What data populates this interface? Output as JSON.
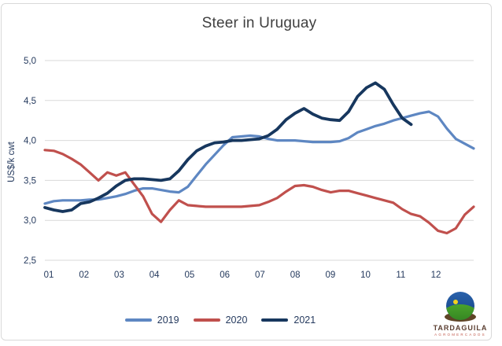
{
  "chart_data": {
    "type": "line",
    "title": "Steer in Uruguay",
    "xlabel": "",
    "ylabel": "US$/k cwt",
    "xlim": [
      1,
      13
    ],
    "ylim": [
      2.5,
      5.0
    ],
    "y_ticks": [
      2.5,
      3.0,
      3.5,
      4.0,
      4.5,
      5.0
    ],
    "y_tick_labels": [
      "2,5",
      "3,0",
      "3,5",
      "4,0",
      "4,5",
      "5,0"
    ],
    "x_tick_labels": [
      "01",
      "02",
      "03",
      "04",
      "05",
      "06",
      "07",
      "08",
      "09",
      "10",
      "11",
      "12"
    ],
    "grid": "horizontal",
    "legend_position": "bottom",
    "x_unit": "month (weekly points)",
    "series": [
      {
        "name": "2019",
        "color": "#5E87C2",
        "x": [
          1,
          1.25,
          1.5,
          1.75,
          2,
          2.25,
          2.5,
          2.75,
          3,
          3.25,
          3.5,
          3.75,
          4,
          4.25,
          4.5,
          4.75,
          5,
          5.25,
          5.5,
          5.75,
          6,
          6.25,
          6.5,
          6.75,
          7,
          7.25,
          7.5,
          7.75,
          8,
          8.25,
          8.5,
          8.75,
          9,
          9.25,
          9.5,
          9.75,
          10,
          10.25,
          10.5,
          10.75,
          11,
          11.25,
          11.5,
          11.75,
          12,
          12.25,
          12.5,
          12.75,
          13
        ],
        "values": [
          3.21,
          3.24,
          3.25,
          3.25,
          3.25,
          3.26,
          3.26,
          3.28,
          3.3,
          3.33,
          3.37,
          3.4,
          3.4,
          3.38,
          3.36,
          3.35,
          3.42,
          3.56,
          3.7,
          3.82,
          3.94,
          4.04,
          4.05,
          4.06,
          4.05,
          4.02,
          4.0,
          4.0,
          4.0,
          3.99,
          3.98,
          3.98,
          3.98,
          3.99,
          4.03,
          4.1,
          4.14,
          4.18,
          4.21,
          4.25,
          4.28,
          4.31,
          4.34,
          4.36,
          4.3,
          4.15,
          4.02,
          3.96,
          3.9
        ]
      },
      {
        "name": "2020",
        "color": "#C0504D",
        "x": [
          1,
          1.25,
          1.5,
          1.75,
          2,
          2.25,
          2.5,
          2.75,
          3,
          3.25,
          3.5,
          3.75,
          4,
          4.25,
          4.5,
          4.75,
          5,
          5.25,
          5.5,
          5.75,
          6,
          6.25,
          6.5,
          6.75,
          7,
          7.25,
          7.5,
          7.75,
          8,
          8.25,
          8.5,
          8.75,
          9,
          9.25,
          9.5,
          9.75,
          10,
          10.25,
          10.5,
          10.75,
          11,
          11.25,
          11.5,
          11.75,
          12,
          12.25,
          12.5,
          12.75,
          13
        ],
        "values": [
          3.88,
          3.87,
          3.83,
          3.77,
          3.7,
          3.6,
          3.5,
          3.6,
          3.56,
          3.6,
          3.45,
          3.3,
          3.08,
          2.98,
          3.13,
          3.25,
          3.19,
          3.18,
          3.17,
          3.17,
          3.17,
          3.17,
          3.17,
          3.18,
          3.19,
          3.23,
          3.28,
          3.36,
          3.43,
          3.44,
          3.42,
          3.38,
          3.35,
          3.37,
          3.37,
          3.34,
          3.31,
          3.28,
          3.25,
          3.22,
          3.14,
          3.08,
          3.05,
          2.97,
          2.87,
          2.84,
          2.9,
          3.07,
          3.17
        ]
      },
      {
        "name": "2021",
        "color": "#17375E",
        "x": [
          1,
          1.25,
          1.5,
          1.75,
          2,
          2.25,
          2.5,
          2.75,
          3,
          3.25,
          3.5,
          3.75,
          4,
          4.25,
          4.5,
          4.75,
          5,
          5.25,
          5.5,
          5.75,
          6,
          6.25,
          6.5,
          6.75,
          7,
          7.25,
          7.5,
          7.75,
          8,
          8.25,
          8.5,
          8.75,
          9,
          9.25,
          9.5,
          9.75,
          10,
          10.25,
          10.5,
          10.75,
          11,
          11.25
        ],
        "values": [
          3.16,
          3.13,
          3.11,
          3.13,
          3.21,
          3.23,
          3.28,
          3.34,
          3.43,
          3.5,
          3.52,
          3.52,
          3.51,
          3.5,
          3.52,
          3.62,
          3.76,
          3.87,
          3.93,
          3.97,
          3.98,
          4.0,
          4.0,
          4.01,
          4.02,
          4.06,
          4.14,
          4.26,
          4.34,
          4.4,
          4.33,
          4.28,
          4.26,
          4.25,
          4.36,
          4.55,
          4.66,
          4.72,
          4.64,
          4.45,
          4.28,
          4.2
        ]
      }
    ]
  },
  "colors": {
    "gridline": "#D9D9D9",
    "axis_text": "#253A5E",
    "title_text": "#3F3F3F",
    "frame_border": "#D9D9D9"
  },
  "logo": {
    "brand": "TARDAGUILA",
    "sub": "AGROMERCADOS"
  }
}
